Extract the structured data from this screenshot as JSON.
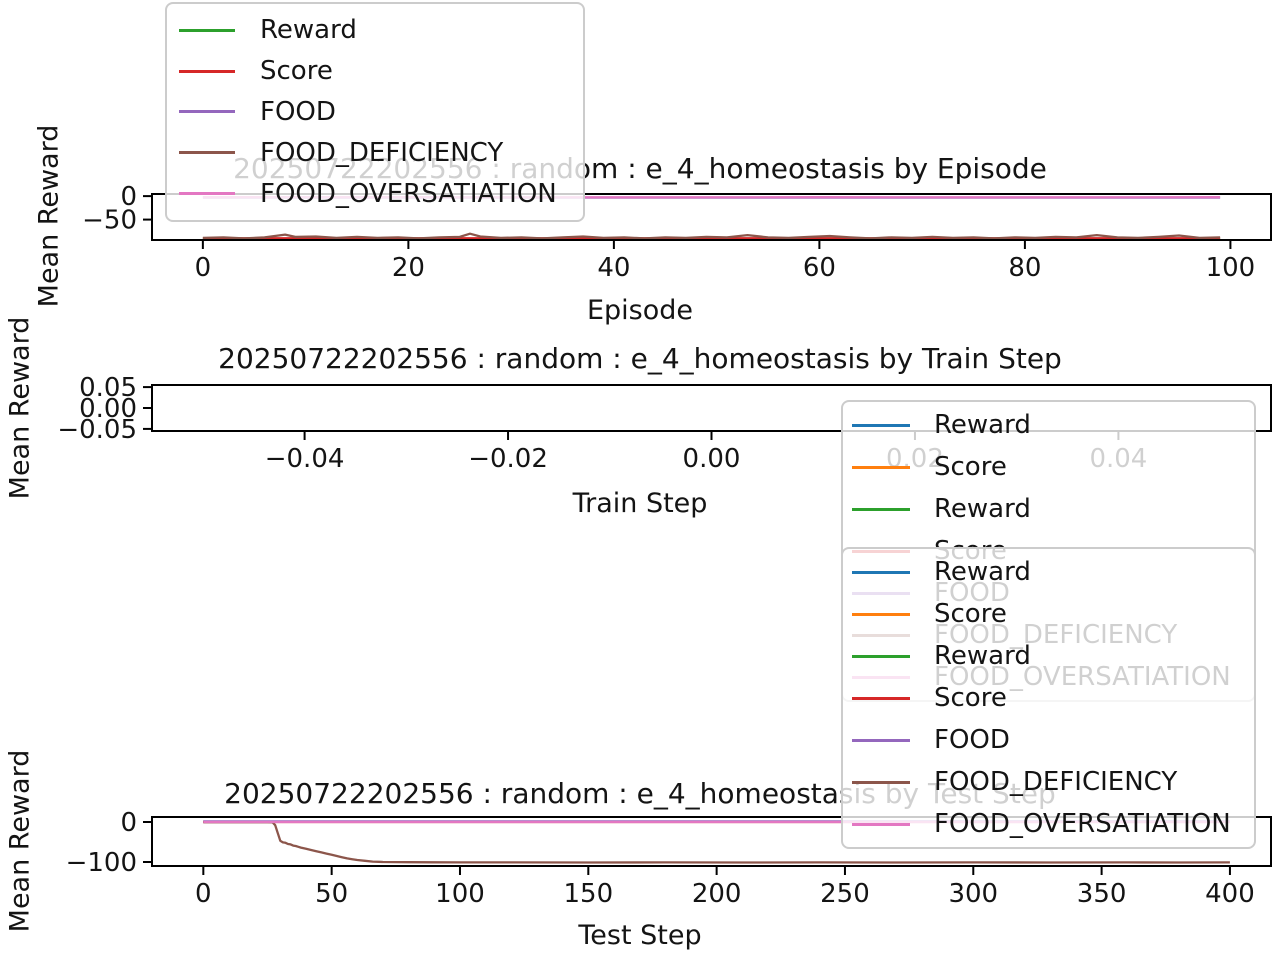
{
  "figure": {
    "background": "#ffffff",
    "text_color": "#141414",
    "frame_color": "#000000",
    "legend_frame_color": "#cccccc",
    "legend_bg_alpha": 0.8
  },
  "chart_data": {
    "type": "line",
    "layout": "3 stacked panels, shared run label",
    "run_id": "20250722202556 : random : e_4_homeostasis",
    "plots": [
      {
        "id": "episode",
        "type": "line",
        "title": "20250722202556 : random : e_4_homeostasis by Episode",
        "xlabel": "Episode",
        "ylabel": "Mean Reward",
        "xlim": [
          -4.95,
          103.95
        ],
        "ylim": [
          -93.5,
          4.5
        ],
        "grid": false,
        "xticks": {
          "values": [
            0,
            20,
            40,
            60,
            80,
            100
          ],
          "labels": [
            "0",
            "20",
            "40",
            "60",
            "80",
            "100"
          ]
        },
        "yticks": {
          "values": [
            0,
            -50
          ],
          "labels": [
            "0",
            "−50"
          ]
        },
        "series": [
          {
            "name": "Reward",
            "color": "#2ca02c",
            "note": "hidden beneath FOOD_DEFICIENCY",
            "points": [
              [
                0,
                -90.5
              ],
              [
                99,
                -90.5
              ]
            ]
          },
          {
            "name": "Score",
            "color": "#d62728",
            "note": "hidden beneath FOOD_DEFICIENCY",
            "points": [
              [
                0,
                -89.8
              ],
              [
                99,
                -89.8
              ]
            ]
          },
          {
            "name": "FOOD",
            "color": "#9467bd",
            "note": "hidden beneath FOOD_OVERSATIATION",
            "points": [
              [
                0,
                -3.2
              ],
              [
                99,
                -3.2
              ]
            ]
          },
          {
            "name": "FOOD_DEFICIENCY",
            "color": "#8c564b",
            "points": [
              [
                0,
                -89
              ],
              [
                2,
                -88
              ],
              [
                4,
                -90
              ],
              [
                6,
                -88
              ],
              [
                8,
                -82
              ],
              [
                9,
                -87
              ],
              [
                11,
                -86
              ],
              [
                13,
                -89
              ],
              [
                15,
                -87
              ],
              [
                17,
                -89
              ],
              [
                19,
                -88
              ],
              [
                21,
                -90
              ],
              [
                23,
                -88
              ],
              [
                25,
                -87
              ],
              [
                26,
                -80
              ],
              [
                27,
                -86
              ],
              [
                29,
                -89
              ],
              [
                31,
                -88
              ],
              [
                33,
                -90
              ],
              [
                35,
                -88
              ],
              [
                37,
                -86
              ],
              [
                39,
                -89
              ],
              [
                41,
                -88
              ],
              [
                43,
                -90
              ],
              [
                45,
                -88
              ],
              [
                47,
                -89
              ],
              [
                49,
                -87
              ],
              [
                51,
                -88
              ],
              [
                53,
                -83
              ],
              [
                55,
                -88
              ],
              [
                57,
                -89
              ],
              [
                59,
                -87
              ],
              [
                61,
                -85
              ],
              [
                63,
                -88
              ],
              [
                65,
                -90
              ],
              [
                67,
                -88
              ],
              [
                69,
                -89
              ],
              [
                71,
                -87
              ],
              [
                73,
                -89
              ],
              [
                75,
                -88
              ],
              [
                77,
                -90
              ],
              [
                79,
                -88
              ],
              [
                81,
                -89
              ],
              [
                83,
                -87
              ],
              [
                85,
                -88
              ],
              [
                87,
                -83
              ],
              [
                89,
                -88
              ],
              [
                91,
                -89
              ],
              [
                93,
                -87
              ],
              [
                95,
                -84
              ],
              [
                97,
                -89
              ],
              [
                99,
                -88
              ]
            ]
          },
          {
            "name": "FOOD_OVERSATIATION",
            "color": "#e377c2",
            "points": [
              [
                0,
                -2.4
              ],
              [
                20,
                -2.3
              ],
              [
                40,
                -2.5
              ],
              [
                60,
                -2.4
              ],
              [
                80,
                -2.5
              ],
              [
                99,
                -2.4
              ]
            ]
          }
        ]
      },
      {
        "id": "train_step",
        "type": "line",
        "title": "20250722202556 : random : e_4_homeostasis by Train Step",
        "xlabel": "Train Step",
        "ylabel": "Mean Reward",
        "xlim": [
          -0.055,
          0.055
        ],
        "ylim": [
          -0.055,
          0.055
        ],
        "grid": false,
        "note": "empty axes - no training data recorded",
        "xticks": {
          "values": [
            -0.04,
            -0.02,
            0.0,
            0.02,
            0.04
          ],
          "labels": [
            "−0.04",
            "−0.02",
            "0.00",
            "0.02",
            "0.04"
          ]
        },
        "yticks": {
          "values": [
            0.05,
            0.0,
            -0.05
          ],
          "labels": [
            "0.05",
            "0.00",
            "−0.05"
          ]
        },
        "series": []
      },
      {
        "id": "test_step",
        "type": "line",
        "title": "20250722202556 : random : e_4_homeostasis by Test Step",
        "xlabel": "Test Step",
        "ylabel": "Mean Reward",
        "xlim": [
          -20,
          416
        ],
        "ylim": [
          -110,
          12.5
        ],
        "grid": false,
        "xticks": {
          "values": [
            0,
            50,
            100,
            150,
            200,
            250,
            300,
            350,
            400
          ],
          "labels": [
            "0",
            "50",
            "100",
            "150",
            "200",
            "250",
            "300",
            "350",
            "400"
          ]
        },
        "yticks": {
          "values": [
            0,
            -100
          ],
          "labels": [
            "0",
            "−100"
          ]
        },
        "series": [
          {
            "name": "Reward",
            "color": "#1f77b4",
            "note": "hidden beneath FOOD_OVERSATIATION",
            "points": [
              [
                0,
                0.4
              ],
              [
                400,
                0.4
              ]
            ]
          },
          {
            "name": "Score",
            "color": "#ff7f0e",
            "note": "hidden beneath FOOD_OVERSATIATION",
            "points": [
              [
                0,
                0.2
              ],
              [
                400,
                0.2
              ]
            ]
          },
          {
            "name": "Reward",
            "color": "#2ca02c",
            "note": "hidden beneath FOOD_OVERSATIATION",
            "points": [
              [
                0,
                0.6
              ],
              [
                400,
                0.6
              ]
            ]
          },
          {
            "name": "Score",
            "color": "#d62728",
            "note": "hidden beneath FOOD_OVERSATIATION",
            "points": [
              [
                0,
                0.1
              ],
              [
                400,
                0.1
              ]
            ]
          },
          {
            "name": "FOOD",
            "color": "#9467bd",
            "points": [
              [
                0,
                1.4
              ],
              [
                400,
                1.4
              ]
            ]
          },
          {
            "name": "FOOD_DEFICIENCY",
            "color": "#8c564b",
            "points": [
              [
                0,
                -0.5
              ],
              [
                10,
                -0.5
              ],
              [
                20,
                -0.5
              ],
              [
                25,
                -0.5
              ],
              [
                27,
                -1
              ],
              [
                28,
                -8
              ],
              [
                29,
                -28
              ],
              [
                30,
                -47
              ],
              [
                31,
                -51
              ],
              [
                32,
                -52
              ],
              [
                33,
                -55
              ],
              [
                34,
                -56
              ],
              [
                35,
                -59
              ],
              [
                36,
                -60
              ],
              [
                37,
                -62
              ],
              [
                38,
                -64
              ],
              [
                40,
                -67
              ],
              [
                42,
                -70
              ],
              [
                44,
                -73
              ],
              [
                46,
                -76
              ],
              [
                48,
                -79
              ],
              [
                50,
                -82
              ],
              [
                52,
                -85
              ],
              [
                54,
                -88
              ],
              [
                56,
                -91
              ],
              [
                58,
                -93
              ],
              [
                60,
                -95
              ],
              [
                63,
                -97
              ],
              [
                66,
                -99
              ],
              [
                70,
                -100
              ],
              [
                80,
                -100.5
              ],
              [
                90,
                -100.8
              ],
              [
                100,
                -101
              ],
              [
                120,
                -101
              ],
              [
                150,
                -101.2
              ],
              [
                180,
                -101
              ],
              [
                210,
                -101.2
              ],
              [
                240,
                -101
              ],
              [
                270,
                -101.2
              ],
              [
                300,
                -101
              ],
              [
                330,
                -101.2
              ],
              [
                360,
                -101
              ],
              [
                380,
                -101.2
              ],
              [
                400,
                -101
              ]
            ]
          },
          {
            "name": "FOOD_OVERSATIATION",
            "color": "#e377c2",
            "points": [
              [
                0,
                0
              ],
              [
                400,
                0
              ]
            ]
          }
        ]
      }
    ]
  },
  "legends": [
    {
      "id": "episode",
      "location": "upper left, overlapping plot 1 title",
      "items": [
        {
          "label": "Reward",
          "color": "#2ca02c"
        },
        {
          "label": "Score",
          "color": "#d62728"
        },
        {
          "label": "FOOD",
          "color": "#9467bd"
        },
        {
          "label": "FOOD_DEFICIENCY",
          "color": "#8c564b"
        },
        {
          "label": "FOOD_OVERSATIATION",
          "color": "#e377c2"
        }
      ]
    },
    {
      "id": "train",
      "location": "right, overlapping plot 2 axis and partially covered by test legend",
      "items": [
        {
          "label": "Reward",
          "color": "#1f77b4"
        },
        {
          "label": "Score",
          "color": "#ff7f0e"
        },
        {
          "label": "Reward",
          "color": "#2ca02c"
        },
        {
          "label": "Score",
          "color": "#d62728"
        },
        {
          "label": "FOOD",
          "color": "#9467bd"
        },
        {
          "label": "FOOD_DEFICIENCY",
          "color": "#8c564b"
        },
        {
          "label": "FOOD_OVERSATIATION",
          "color": "#e377c2"
        }
      ]
    },
    {
      "id": "test",
      "location": "right, overlapping plot 3 title",
      "items": [
        {
          "label": "Reward",
          "color": "#1f77b4"
        },
        {
          "label": "Score",
          "color": "#ff7f0e"
        },
        {
          "label": "Reward",
          "color": "#2ca02c"
        },
        {
          "label": "Score",
          "color": "#d62728"
        },
        {
          "label": "FOOD",
          "color": "#9467bd"
        },
        {
          "label": "FOOD_DEFICIENCY",
          "color": "#8c564b"
        },
        {
          "label": "FOOD_OVERSATIATION",
          "color": "#e377c2"
        }
      ]
    }
  ]
}
